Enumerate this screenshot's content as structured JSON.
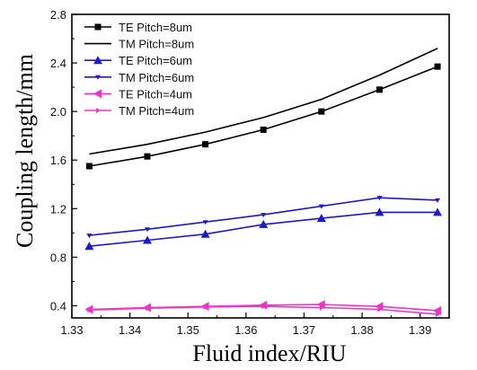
{
  "chart_data": {
    "type": "line",
    "xlabel": "Fluid index/RIU",
    "ylabel": "Coupling length/mm",
    "xlim": [
      1.33,
      1.395
    ],
    "ylim": [
      0.3,
      2.8
    ],
    "xticks": [
      "1.33",
      "1.34",
      "1.35",
      "1.36",
      "1.37",
      "1.38",
      "1.39"
    ],
    "yticks": [
      "0.4",
      "0.8",
      "1.2",
      "1.6",
      "2.0",
      "2.4",
      "2.8"
    ],
    "legend_position": "top-left",
    "grid": false,
    "x": [
      1.333,
      1.343,
      1.353,
      1.363,
      1.373,
      1.383,
      1.393
    ],
    "series": [
      {
        "name": "TE  Pitch=8um",
        "color": "#000000",
        "marker": "square",
        "values": [
          1.55,
          1.63,
          1.73,
          1.85,
          2.0,
          2.18,
          2.37
        ]
      },
      {
        "name": "TM  Pitch=8um",
        "color": "#000000",
        "marker": "none",
        "values": [
          1.65,
          1.73,
          1.83,
          1.95,
          2.1,
          2.3,
          2.52
        ]
      },
      {
        "name": "TE  Pitch=6um",
        "color": "#1a1acc",
        "marker": "triangle-up",
        "values": [
          0.89,
          0.94,
          0.99,
          1.07,
          1.12,
          1.17,
          1.17
        ]
      },
      {
        "name": "TM  Pitch=6um",
        "color": "#1a1acc",
        "marker": "triangle-down",
        "values": [
          0.98,
          1.03,
          1.09,
          1.15,
          1.22,
          1.29,
          1.27
        ]
      },
      {
        "name": "TE  Pitch=4um",
        "color": "#ee33cc",
        "marker": "triangle-left",
        "values": [
          0.37,
          0.385,
          0.395,
          0.405,
          0.41,
          0.395,
          0.36
        ]
      },
      {
        "name": "TM  Pitch=4um",
        "color": "#ee33cc",
        "marker": "triangle-right-small",
        "values": [
          0.365,
          0.38,
          0.39,
          0.395,
          0.385,
          0.37,
          0.33
        ]
      }
    ]
  }
}
